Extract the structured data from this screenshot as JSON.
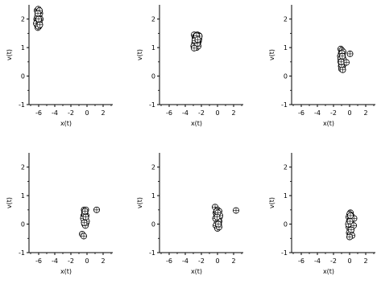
{
  "chart_data": [
    {
      "type": "scatter",
      "xlabel": "x(t)",
      "ylabel": "v(t)",
      "xlim": [
        -7.2,
        3.2
      ],
      "ylim": [
        -1,
        2.5
      ],
      "xticks": [
        -6,
        -4,
        -2,
        0,
        2
      ],
      "yticks": [
        -1,
        0,
        1,
        2
      ],
      "xtick_labels": [
        "-6",
        "-4",
        "-2",
        "0",
        "2"
      ],
      "ytick_labels": [
        "-1",
        "0",
        "1",
        "2"
      ],
      "x": [
        -6.2,
        -6.05,
        -5.9,
        -6.1,
        -5.95,
        -6.25,
        -6.0,
        -5.85,
        -6.15,
        -5.9,
        -6.05,
        -6.2,
        -5.95,
        -6.1,
        -5.8,
        -6.0,
        -6.3,
        -5.9,
        -6.05,
        -6.15,
        -5.95,
        -6.1,
        -5.85,
        -6.0
      ],
      "y": [
        2.3,
        2.35,
        2.25,
        2.15,
        2.1,
        2.0,
        2.05,
        2.2,
        1.95,
        1.85,
        1.9,
        1.8,
        1.75,
        1.7,
        2.0,
        2.25,
        1.85,
        2.3,
        1.75,
        2.1,
        1.95,
        2.2,
        1.8,
        2.0
      ]
    },
    {
      "type": "scatter",
      "xlabel": "x(t)",
      "ylabel": "v(t)",
      "xlim": [
        -7.2,
        3.2
      ],
      "ylim": [
        -1,
        2.5
      ],
      "xticks": [
        -6,
        -4,
        -2,
        0,
        2
      ],
      "yticks": [
        -1,
        0,
        1,
        2
      ],
      "xtick_labels": [
        "-6",
        "-4",
        "-2",
        "0",
        "2"
      ],
      "ytick_labels": [
        "-1",
        "0",
        "1",
        "2"
      ],
      "x": [
        -2.9,
        -2.7,
        -2.5,
        -2.3,
        -2.8,
        -2.6,
        -2.4,
        -2.75,
        -2.55,
        -2.35,
        -2.85,
        -2.65,
        -2.45,
        -2.95,
        -2.6,
        -2.4,
        -2.7,
        -2.5,
        -2.8,
        -2.3,
        -2.25,
        -2.9,
        -2.6,
        -2.45
      ],
      "y": [
        1.45,
        1.4,
        1.45,
        1.42,
        1.35,
        1.3,
        1.3,
        1.25,
        1.2,
        1.22,
        1.15,
        1.1,
        1.15,
        1.05,
        1.0,
        1.05,
        1.35,
        1.15,
        1.25,
        1.3,
        1.4,
        0.98,
        1.42,
        1.28
      ]
    },
    {
      "type": "scatter",
      "xlabel": "x(t)",
      "ylabel": "v(t)",
      "xlim": [
        -7.2,
        3.2
      ],
      "ylim": [
        -1,
        2.5
      ],
      "xticks": [
        -6,
        -4,
        -2,
        0,
        2
      ],
      "yticks": [
        -1,
        0,
        1,
        2
      ],
      "xtick_labels": [
        "-6",
        "-4",
        "-2",
        "0",
        "2"
      ],
      "ytick_labels": [
        "-1",
        "0",
        "1",
        "2"
      ],
      "x": [
        -1.1,
        -0.95,
        -0.8,
        -1.05,
        -0.9,
        -1.15,
        -0.85,
        -1.0,
        -0.9,
        -1.1,
        -0.95,
        -0.8,
        -1.05,
        -0.9,
        -1.0,
        -0.85,
        -1.1,
        -0.95,
        -0.7,
        -0.4,
        0.05,
        -1.0,
        -0.9,
        -1.05
      ],
      "y": [
        0.95,
        0.9,
        0.85,
        0.8,
        0.75,
        0.7,
        0.65,
        0.6,
        0.55,
        0.5,
        0.45,
        0.4,
        0.35,
        0.3,
        0.25,
        0.22,
        0.6,
        0.8,
        0.55,
        0.48,
        0.78,
        0.4,
        0.7,
        0.5
      ]
    },
    {
      "type": "scatter",
      "xlabel": "x(t)",
      "ylabel": "v(t)",
      "xlim": [
        -7.2,
        3.2
      ],
      "ylim": [
        -1,
        2.5
      ],
      "xticks": [
        -6,
        -4,
        -2,
        0,
        2
      ],
      "yticks": [
        -1,
        0,
        1,
        2
      ],
      "xtick_labels": [
        "-6",
        "-4",
        "-2",
        "0",
        "2"
      ],
      "ytick_labels": [
        "-1",
        "0",
        "1",
        "2"
      ],
      "x": [
        -0.35,
        -0.25,
        -0.15,
        -0.3,
        -0.2,
        -0.4,
        -0.1,
        -0.3,
        -0.2,
        -0.35,
        -0.15,
        -0.25,
        -0.1,
        -0.3,
        -0.2,
        -0.05,
        -0.45,
        -0.3,
        1.2,
        -0.6,
        -0.4,
        -0.25,
        -0.15,
        -0.35
      ],
      "y": [
        0.5,
        0.45,
        0.5,
        0.4,
        0.35,
        0.3,
        0.3,
        0.25,
        0.2,
        0.15,
        0.15,
        0.1,
        0.05,
        0.0,
        -0.05,
        0.1,
        0.2,
        0.35,
        0.5,
        -0.35,
        -0.42,
        0.45,
        0.25,
        0.05
      ]
    },
    {
      "type": "scatter",
      "xlabel": "x(t)",
      "ylabel": "v(t)",
      "xlim": [
        -7.2,
        3.2
      ],
      "ylim": [
        -1,
        2.5
      ],
      "xticks": [
        -6,
        -4,
        -2,
        0,
        2
      ],
      "yticks": [
        -1,
        0,
        1,
        2
      ],
      "xtick_labels": [
        "-6",
        "-4",
        "-2",
        "0",
        "2"
      ],
      "ytick_labels": [
        "-1",
        "0",
        "1",
        "2"
      ],
      "x": [
        -0.3,
        0.0,
        0.2,
        -0.2,
        0.1,
        -0.1,
        0.25,
        -0.15,
        0.05,
        0.2,
        -0.05,
        0.15,
        -0.2,
        0.1,
        0.0,
        0.3,
        -0.1,
        0.15,
        2.3,
        -0.25,
        0.05,
        0.2,
        -0.05,
        0.1
      ],
      "y": [
        0.6,
        0.5,
        0.45,
        0.4,
        0.35,
        0.3,
        0.25,
        0.2,
        0.15,
        0.1,
        0.05,
        0.0,
        -0.05,
        -0.1,
        -0.15,
        0.3,
        0.45,
        0.1,
        0.48,
        0.2,
        0.4,
        -0.1,
        0.25,
        0.0
      ]
    },
    {
      "type": "scatter",
      "xlabel": "x(t)",
      "ylabel": "v(t)",
      "xlim": [
        -7.2,
        3.2
      ],
      "ylim": [
        -1,
        2.5
      ],
      "xticks": [
        -6,
        -4,
        -2,
        0,
        2
      ],
      "yticks": [
        -1,
        0,
        1,
        2
      ],
      "xtick_labels": [
        "-6",
        "-4",
        "-2",
        "0",
        "2"
      ],
      "ytick_labels": [
        "-1",
        "0",
        "1",
        "2"
      ],
      "x": [
        0.1,
        0.0,
        0.2,
        -0.1,
        0.15,
        0.05,
        -0.05,
        0.1,
        0.25,
        0.0,
        -0.1,
        0.2,
        0.05,
        0.15,
        -0.05,
        0.1,
        0.3,
        0.0,
        0.55,
        0.5,
        -0.15,
        0.05,
        0.2,
        0.1
      ],
      "y": [
        0.4,
        0.35,
        0.3,
        0.25,
        0.2,
        0.15,
        0.1,
        0.05,
        0.0,
        -0.05,
        -0.1,
        -0.15,
        -0.2,
        -0.25,
        -0.3,
        -0.35,
        -0.4,
        -0.45,
        0.2,
        -0.05,
        0.0,
        0.1,
        -0.2,
        0.3
      ]
    }
  ]
}
